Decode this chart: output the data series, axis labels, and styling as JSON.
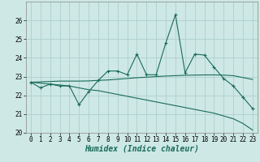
{
  "xlabel": "Humidex (Indice chaleur)",
  "background_color": "#cde8e5",
  "grid_color": "#afd0cc",
  "line_color": "#1a6b5a",
  "x_values": [
    0,
    1,
    2,
    3,
    4,
    5,
    6,
    7,
    8,
    9,
    10,
    11,
    12,
    13,
    14,
    15,
    16,
    17,
    18,
    19,
    20,
    21,
    22,
    23
  ],
  "line1_y": [
    22.7,
    22.4,
    22.6,
    22.5,
    22.5,
    21.5,
    22.2,
    22.8,
    23.3,
    23.3,
    23.1,
    24.2,
    23.1,
    23.1,
    24.8,
    26.3,
    23.2,
    24.2,
    24.15,
    23.5,
    22.9,
    22.5,
    21.9,
    21.3
  ],
  "line2_y": [
    22.7,
    22.72,
    22.74,
    22.76,
    22.76,
    22.76,
    22.77,
    22.8,
    22.82,
    22.86,
    22.9,
    22.94,
    22.97,
    23.0,
    23.03,
    23.05,
    23.07,
    23.08,
    23.09,
    23.09,
    23.08,
    23.05,
    22.95,
    22.85
  ],
  "line3_y": [
    22.7,
    22.65,
    22.6,
    22.55,
    22.5,
    22.4,
    22.3,
    22.25,
    22.15,
    22.05,
    21.95,
    21.85,
    21.75,
    21.65,
    21.55,
    21.45,
    21.35,
    21.25,
    21.15,
    21.05,
    20.9,
    20.75,
    20.5,
    20.15
  ],
  "ylim": [
    20,
    27
  ],
  "xlim": [
    -0.5,
    23.5
  ],
  "yticks": [
    20,
    21,
    22,
    23,
    24,
    25,
    26
  ],
  "xticks": [
    0,
    1,
    2,
    3,
    4,
    5,
    6,
    7,
    8,
    9,
    10,
    11,
    12,
    13,
    14,
    15,
    16,
    17,
    18,
    19,
    20,
    21,
    22,
    23
  ],
  "tick_fontsize": 5.5,
  "label_fontsize": 7.0
}
